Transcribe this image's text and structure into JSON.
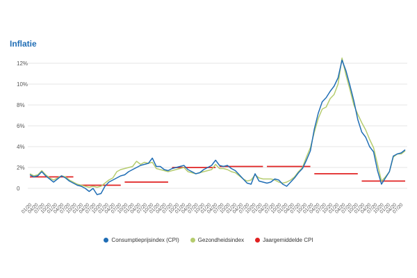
{
  "chart_data": {
    "type": "line",
    "title": "Inflatie",
    "xlabel": "",
    "ylabel": "",
    "ylim": [
      -2,
      13
    ],
    "y_ticks": [
      "0",
      "2%",
      "4%",
      "6%",
      "8%",
      "10%",
      "12%"
    ],
    "y_tick_values": [
      0,
      2,
      4,
      6,
      8,
      10,
      12
    ],
    "x_ticks": [
      "01/20",
      "04/20",
      "07/20",
      "10/20",
      "01/20",
      "04/20",
      "07/20",
      "10/20",
      "01/20",
      "04/20",
      "07/20",
      "10/20",
      "01/20",
      "04/20",
      "07/20",
      "10/20",
      "01/20",
      "04/20",
      "07/20",
      "10/20",
      "01/20",
      "04/20",
      "07/20",
      "10/20",
      "01/20",
      "04/20",
      "07/20",
      "10/20",
      "01/20",
      "04/20",
      "07/20",
      "10/20",
      "01/20",
      "04/20",
      "07/20",
      "10/20",
      "01/20",
      "04/20",
      "07/20",
      "10/20",
      "01/20",
      "04/20",
      "07/20",
      "10/20",
      "01/20",
      "04/20",
      "07/20",
      "10/20",
      "01/20",
      "04/20",
      "07/20",
      "10/20",
      "01/20",
      "04/20",
      "07/20",
      "10/20",
      "01/20",
      "04/20",
      "07/20"
    ],
    "grid": true,
    "legend_position": "bottom-center",
    "series": [
      {
        "name": "Consumptieprijsindex (CPI)",
        "color": "#1f6db5",
        "values": [
          1.3,
          1.1,
          1.2,
          1.6,
          1.2,
          0.9,
          0.6,
          0.9,
          1.2,
          1.0,
          0.7,
          0.5,
          0.3,
          0.2,
          0.0,
          -0.3,
          0.0,
          -0.6,
          -0.5,
          0.2,
          0.6,
          0.8,
          1.0,
          1.2,
          1.3,
          1.6,
          1.8,
          2.0,
          2.2,
          2.3,
          2.4,
          2.9,
          2.1,
          2.1,
          1.8,
          1.7,
          1.9,
          2.0,
          2.1,
          2.2,
          1.8,
          1.6,
          1.4,
          1.5,
          1.8,
          2.0,
          2.2,
          2.7,
          2.2,
          2.1,
          2.2,
          1.9,
          1.7,
          1.3,
          0.9,
          0.5,
          0.4,
          1.4,
          0.7,
          0.6,
          0.5,
          0.6,
          0.9,
          0.8,
          0.4,
          0.2,
          0.6,
          1.0,
          1.5,
          1.9,
          2.7,
          3.6,
          5.7,
          7.2,
          8.3,
          8.7,
          9.3,
          9.8,
          10.6,
          12.3,
          11.3,
          9.9,
          8.4,
          6.6,
          5.4,
          4.9,
          4.0,
          3.5,
          1.7,
          0.4,
          1.0,
          1.6,
          3.1,
          3.3,
          3.4,
          3.7
        ]
      },
      {
        "name": "Gezondheidsindex",
        "color": "#b5cc6e",
        "values": [
          1.4,
          1.2,
          1.3,
          1.7,
          1.3,
          1.0,
          0.8,
          1.0,
          1.2,
          1.1,
          0.8,
          0.6,
          0.4,
          0.3,
          0.2,
          0.1,
          0.2,
          0.1,
          0.2,
          0.5,
          0.8,
          1.0,
          1.6,
          1.8,
          1.9,
          2.0,
          2.1,
          2.6,
          2.3,
          2.5,
          2.4,
          2.5,
          1.9,
          1.8,
          1.7,
          1.6,
          1.7,
          1.8,
          1.9,
          2.0,
          1.6,
          1.5,
          1.4,
          1.5,
          1.6,
          1.7,
          1.8,
          2.3,
          1.9,
          1.9,
          1.8,
          1.6,
          1.5,
          1.2,
          0.9,
          0.7,
          0.8,
          1.3,
          1.0,
          0.9,
          0.9,
          0.9,
          0.8,
          0.6,
          0.5,
          0.6,
          0.8,
          1.1,
          1.6,
          2.0,
          3.0,
          3.9,
          5.4,
          6.7,
          7.6,
          7.8,
          8.6,
          9.0,
          10.0,
          12.5,
          10.9,
          9.5,
          8.0,
          7.1,
          6.3,
          5.6,
          4.7,
          3.9,
          2.3,
          0.7,
          1.1,
          1.6,
          3.0,
          3.3,
          3.3,
          3.6
        ]
      }
    ],
    "annual_average": {
      "name": "Jaargemiddelde CPI",
      "color": "#e02020",
      "segments": [
        {
          "from_index": 0,
          "to_index": 11,
          "value": 1.1
        },
        {
          "from_index": 12,
          "to_index": 23,
          "value": 0.3
        },
        {
          "from_index": 24,
          "to_index": 35,
          "value": 0.6
        },
        {
          "from_index": 36,
          "to_index": 47,
          "value": 2.0
        },
        {
          "from_index": 48,
          "to_index": 59,
          "value": 2.1
        },
        {
          "from_index": 60,
          "to_index": 71,
          "value": 2.1
        },
        {
          "from_index": 72,
          "to_index": 83,
          "value": 1.4
        },
        {
          "from_index": 84,
          "to_index": 95,
          "value": 0.7
        }
      ]
    }
  },
  "legend": [
    {
      "label": "Consumptieprijsindex (CPI)",
      "color": "#1f6db5"
    },
    {
      "label": "Gezondheidsindex",
      "color": "#b5cc6e"
    },
    {
      "label": "Jaargemiddelde CPI",
      "color": "#e02020"
    }
  ]
}
